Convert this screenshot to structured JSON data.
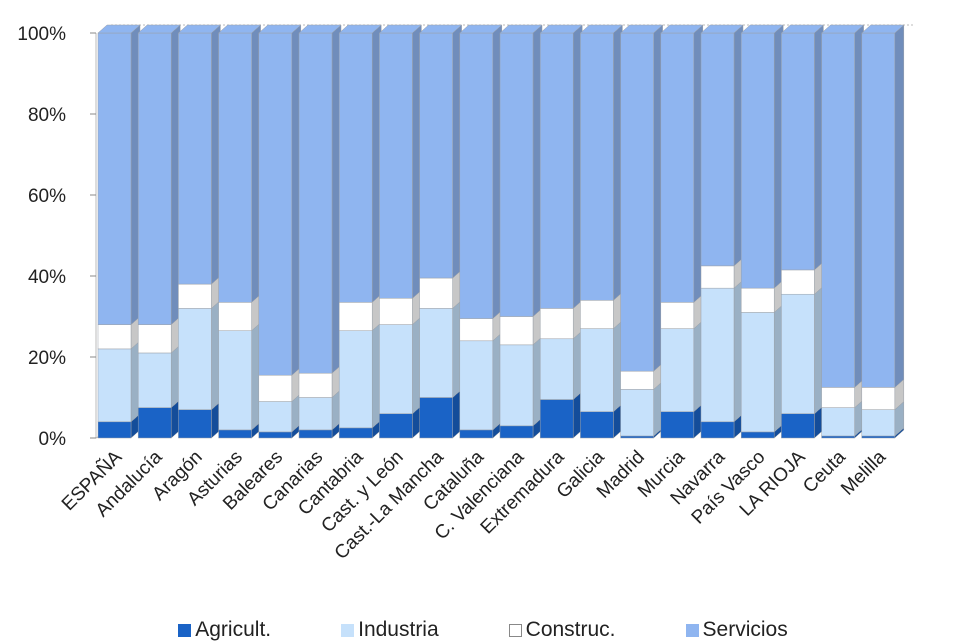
{
  "chart_data": {
    "type": "bar",
    "stacked": true,
    "percent": true,
    "three_d": true,
    "categories": [
      "ESPAÑA",
      "Andalucía",
      "Aragón",
      "Asturias",
      "Baleares",
      "Canarias",
      "Cantabria",
      "Cast. y León",
      "Cast.-La Mancha",
      "Cataluña",
      "C. Valenciana",
      "Extremadura",
      "Galicia",
      "Madrid",
      "Murcia",
      "Navarra",
      "País Vasco",
      "LA RIOJA",
      "Ceuta",
      "Melilla"
    ],
    "series": [
      {
        "name": "Agricult.",
        "color": "#1a63c6",
        "values": [
          4,
          7.5,
          7,
          2,
          1.5,
          2,
          2.5,
          6,
          10,
          2,
          3,
          9.5,
          6.5,
          0.5,
          6.5,
          4,
          1.5,
          6,
          0.5,
          0.5
        ]
      },
      {
        "name": "Industria",
        "color": "#c6e1fb",
        "values": [
          18,
          13.5,
          25,
          24.5,
          7.5,
          8,
          24,
          22,
          22,
          22,
          20,
          15,
          20.5,
          11.5,
          20.5,
          33,
          29.5,
          29.5,
          7,
          6.5
        ]
      },
      {
        "name": "Construc.",
        "color": "#ffffff",
        "values": [
          6,
          7,
          6,
          7,
          6.5,
          6,
          7,
          6.5,
          7.5,
          5.5,
          7,
          7.5,
          7,
          4.5,
          6.5,
          5.5,
          6,
          6,
          5,
          5.5
        ]
      },
      {
        "name": "Servicios",
        "color": "#8fb5f0",
        "values": [
          72,
          72,
          62,
          66.5,
          84.5,
          84,
          66.5,
          65.5,
          60.5,
          70.5,
          70,
          68,
          66,
          83.5,
          66.5,
          57.5,
          63,
          58.5,
          87.5,
          87.5
        ]
      }
    ],
    "ylim": [
      0,
      100
    ],
    "yticks": [
      "0%",
      "20%",
      "40%",
      "60%",
      "80%",
      "100%"
    ],
    "legend_position": "bottom",
    "grid": true
  }
}
